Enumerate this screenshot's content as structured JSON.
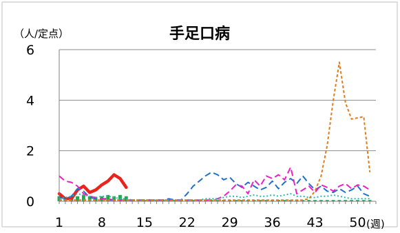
{
  "chart_data": {
    "type": "line",
    "title": "手足口病",
    "ylabel": "（人/定点）",
    "xlabel": "(週)",
    "xlim": [
      1,
      53
    ],
    "ylim": [
      0,
      6
    ],
    "y_ticks": [
      0,
      2,
      4,
      6
    ],
    "x_ticks": [
      1,
      8,
      15,
      22,
      29,
      36,
      43,
      50
    ],
    "grid": "horizontal",
    "legend": "none",
    "series": [
      {
        "style": "bar",
        "color": "#22a84a",
        "x": [
          1,
          2,
          3,
          4,
          5,
          6,
          7,
          8,
          9,
          10,
          11,
          12,
          13,
          14,
          15,
          16,
          17,
          18,
          19,
          20,
          21,
          22,
          23,
          24,
          25,
          26,
          27,
          28,
          29,
          30,
          31,
          32,
          33,
          34,
          35,
          36,
          37,
          38,
          39,
          40,
          41,
          42,
          43,
          44,
          45,
          46,
          47,
          48,
          49,
          50,
          51,
          52
        ],
        "values": [
          0.2,
          0.15,
          0.1,
          0.2,
          0.25,
          0.2,
          0.15,
          0.2,
          0.25,
          0.2,
          0.25,
          0.2,
          0.05,
          0.05,
          0.05,
          0.05,
          0.05,
          0.05,
          0.05,
          0.05,
          0.05,
          0.05,
          0.05,
          0.05,
          0.05,
          0.05,
          0.05,
          0.05,
          0.05,
          0.05,
          0.05,
          0.05,
          0.05,
          0.05,
          0.05,
          0.05,
          0.05,
          0.05,
          0.05,
          0.05,
          0.05,
          0.05,
          0.05,
          0.05,
          0.05,
          0.05,
          0.05,
          0.05,
          0.05,
          0.05,
          0.05,
          0.05
        ]
      },
      {
        "style": "solid-thick",
        "color": "#e8241c",
        "x": [
          1,
          2,
          3,
          4,
          5,
          6,
          7,
          8,
          9,
          10,
          11,
          12
        ],
        "values": [
          0.3,
          0.1,
          0.1,
          0.45,
          0.6,
          0.35,
          0.45,
          0.65,
          0.8,
          1.05,
          0.9,
          0.55
        ]
      },
      {
        "style": "dash",
        "color": "#1f6fd1",
        "x": [
          1,
          2,
          3,
          4,
          5,
          6,
          7,
          8,
          9,
          10,
          11,
          12,
          13,
          14,
          15,
          16,
          17,
          18,
          19,
          20,
          21,
          22,
          23,
          24,
          25,
          26,
          27,
          28,
          29,
          30,
          31,
          32,
          33,
          34,
          35,
          36,
          37,
          38,
          39,
          40,
          41,
          42,
          43,
          44,
          45,
          46,
          47,
          48,
          49,
          50,
          51,
          52
        ],
        "values": [
          0.15,
          0.1,
          0.2,
          0.5,
          0.4,
          0.15,
          0.1,
          0.1,
          0.05,
          0.05,
          0.05,
          0.05,
          0.05,
          0.05,
          0.05,
          0.05,
          0.05,
          0.05,
          0.1,
          0.05,
          0.05,
          0.3,
          0.6,
          0.8,
          1.0,
          1.15,
          1.05,
          0.85,
          0.95,
          0.7,
          0.55,
          0.75,
          0.6,
          0.45,
          0.55,
          0.8,
          0.5,
          0.75,
          0.9,
          0.7,
          1.0,
          0.7,
          0.45,
          0.6,
          0.4,
          0.35,
          0.5,
          0.35,
          0.45,
          0.6,
          0.3,
          0.2
        ]
      },
      {
        "style": "dash",
        "color": "#ee1fc2",
        "x": [
          1,
          2,
          3,
          4,
          5,
          6,
          7,
          8,
          9,
          10,
          11,
          12,
          13,
          14,
          15,
          16,
          17,
          18,
          19,
          20,
          21,
          22,
          23,
          24,
          25,
          26,
          27,
          28,
          29,
          30,
          31,
          32,
          33,
          34,
          35,
          36,
          37,
          38,
          39,
          40,
          41,
          42,
          43,
          44,
          45,
          46,
          47,
          48,
          49,
          50,
          51,
          52
        ],
        "values": [
          1.0,
          0.8,
          0.75,
          0.6,
          0.3,
          0.2,
          0.15,
          0.1,
          0.1,
          0.05,
          0.05,
          0.05,
          0.05,
          0.05,
          0.05,
          0.05,
          0.05,
          0.05,
          0.05,
          0.05,
          0.05,
          0.05,
          0.05,
          0.05,
          0.05,
          0.05,
          0.1,
          0.2,
          0.4,
          0.65,
          0.6,
          0.3,
          0.85,
          0.6,
          1.0,
          0.9,
          1.05,
          0.85,
          1.35,
          0.3,
          0.45,
          0.6,
          0.35,
          0.65,
          0.55,
          0.4,
          0.6,
          0.7,
          0.5,
          0.65,
          0.6,
          0.45
        ]
      },
      {
        "style": "dot",
        "color": "#27b7b2",
        "x": [
          1,
          2,
          3,
          4,
          5,
          6,
          7,
          8,
          9,
          10,
          11,
          12,
          13,
          14,
          15,
          16,
          17,
          18,
          19,
          20,
          21,
          22,
          23,
          24,
          25,
          26,
          27,
          28,
          29,
          30,
          31,
          32,
          33,
          34,
          35,
          36,
          37,
          38,
          39,
          40,
          41,
          42,
          43,
          44,
          45,
          46,
          47,
          48,
          49,
          50,
          51,
          52
        ],
        "values": [
          0.1,
          0.15,
          0.2,
          0.3,
          0.25,
          0.2,
          0.15,
          0.2,
          0.2,
          0.15,
          0.1,
          0.1,
          0.05,
          0.05,
          0.05,
          0.05,
          0.05,
          0.05,
          0.05,
          0.05,
          0.05,
          0.05,
          0.05,
          0.05,
          0.1,
          0.1,
          0.1,
          0.15,
          0.2,
          0.2,
          0.15,
          0.2,
          0.25,
          0.2,
          0.2,
          0.25,
          0.2,
          0.25,
          0.3,
          0.2,
          0.2,
          0.15,
          0.15,
          0.2,
          0.2,
          0.25,
          0.2,
          0.15,
          0.1,
          0.1,
          0.1,
          0.1
        ]
      },
      {
        "style": "dash-short",
        "color": "#e07b1a",
        "x": [
          1,
          2,
          3,
          4,
          5,
          6,
          7,
          8,
          9,
          10,
          11,
          12,
          13,
          14,
          15,
          16,
          17,
          18,
          19,
          20,
          21,
          22,
          23,
          24,
          25,
          26,
          27,
          28,
          29,
          30,
          31,
          32,
          33,
          34,
          35,
          36,
          37,
          38,
          39,
          40,
          41,
          42,
          43,
          44,
          45,
          46,
          47,
          48,
          49,
          50,
          51,
          52
        ],
        "values": [
          0.05,
          0.05,
          0.05,
          0.05,
          0.05,
          0.05,
          0.05,
          0.05,
          0.05,
          0.05,
          0.05,
          0.05,
          0.05,
          0.05,
          0.05,
          0.05,
          0.05,
          0.05,
          0.05,
          0.05,
          0.05,
          0.05,
          0.05,
          0.05,
          0.05,
          0.05,
          0.05,
          0.05,
          0.05,
          0.05,
          0.05,
          0.05,
          0.05,
          0.05,
          0.05,
          0.05,
          0.05,
          0.05,
          0.05,
          0.05,
          0.05,
          0.1,
          0.4,
          1.0,
          2.2,
          4.0,
          5.5,
          3.9,
          3.25,
          3.3,
          3.35,
          1.15
        ]
      }
    ]
  }
}
